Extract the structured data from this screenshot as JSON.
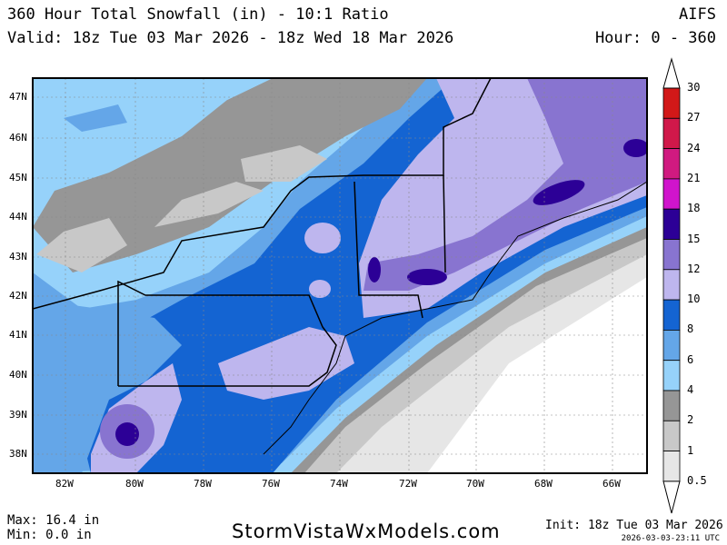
{
  "header": {
    "title": "360 Hour Total Snowfall (in) - 10:1 Ratio",
    "model": "AIFS",
    "valid": "Valid: 18z Tue 03 Mar 2026 - 18z Wed 18 Mar 2026",
    "hours": "Hour: 0 - 360"
  },
  "map": {
    "lat_labels": [
      "47N",
      "46N",
      "45N",
      "44N",
      "43N",
      "42N",
      "41N",
      "40N",
      "39N",
      "38N"
    ],
    "lon_labels": [
      "82W",
      "80W",
      "78W",
      "76W",
      "74W",
      "72W",
      "70W",
      "68W",
      "66W"
    ]
  },
  "colorbar": {
    "labels": [
      "30",
      "27",
      "24",
      "21",
      "18",
      "15",
      "12",
      "10",
      "8",
      "6",
      "4",
      "2",
      "1",
      "0.5"
    ],
    "colors": [
      "#d21818",
      "#d0184a",
      "#d01a80",
      "#d014cc",
      "#2c0096",
      "#8874d0",
      "#beb6ee",
      "#1464d2",
      "#64a6e8",
      "#96d2fa",
      "#969696",
      "#c8c8c8",
      "#e6e6e6"
    ]
  },
  "footer": {
    "max": "Max: 16.4 in",
    "min": "Min: 0.0 in",
    "site": "StormVistaWxModels.com",
    "init": "Init: 18z Tue 03 Mar 2026",
    "generated": "2026-03-03-23:11 UTC"
  }
}
